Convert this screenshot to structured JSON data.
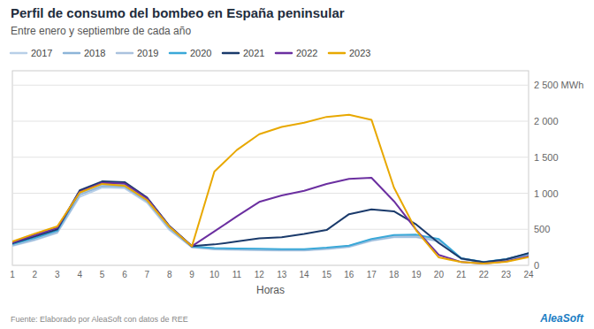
{
  "chart_data": {
    "type": "line",
    "title": "Perfil de consumo del bombeo en España peninsular",
    "subtitle": "Entre enero y septiembre de cada año",
    "x_label": "Horas",
    "x": [
      1,
      2,
      3,
      4,
      5,
      6,
      7,
      8,
      9,
      10,
      11,
      12,
      13,
      14,
      15,
      16,
      17,
      18,
      19,
      20,
      21,
      22,
      23,
      24
    ],
    "xlim": [
      1,
      24
    ],
    "xticks": [
      1,
      2,
      3,
      4,
      5,
      6,
      7,
      8,
      9,
      10,
      11,
      12,
      13,
      14,
      15,
      16,
      17,
      18,
      19,
      20,
      21,
      22,
      23,
      24
    ],
    "ylim": [
      0,
      2700
    ],
    "yticks": [
      0,
      500,
      {
        "value": 1000,
        "label": "1 000"
      },
      {
        "value": 1500,
        "label": "1 500"
      },
      {
        "value": 2000,
        "label": "2 000"
      },
      {
        "value": 2500,
        "label": "2 500 MWh"
      }
    ],
    "grid": true,
    "legend": "top",
    "series": [
      {
        "name": "2017",
        "color": "#b8cfe8",
        "values": [
          270,
          350,
          450,
          950,
          1080,
          1070,
          870,
          490,
          250,
          220,
          215,
          210,
          205,
          205,
          225,
          255,
          340,
          390,
          390,
          330,
          90,
          40,
          80,
          150
        ]
      },
      {
        "name": "2018",
        "color": "#8db5d8",
        "values": [
          280,
          360,
          460,
          980,
          1100,
          1090,
          890,
          510,
          255,
          228,
          222,
          218,
          212,
          212,
          232,
          262,
          350,
          400,
          400,
          340,
          92,
          42,
          82,
          155
        ]
      },
      {
        "name": "2019",
        "color": "#aac2de",
        "values": [
          285,
          365,
          465,
          1000,
          1120,
          1110,
          905,
          520,
          258,
          232,
          226,
          222,
          216,
          216,
          236,
          266,
          355,
          405,
          405,
          345,
          94,
          44,
          84,
          158
        ]
      },
      {
        "name": "2020",
        "color": "#3aa8d8",
        "values": [
          295,
          380,
          480,
          1020,
          1145,
          1135,
          925,
          535,
          262,
          240,
          234,
          230,
          224,
          224,
          244,
          274,
          365,
          420,
          425,
          365,
          98,
          46,
          86,
          162
        ]
      },
      {
        "name": "2021",
        "color": "#1a3a6b",
        "values": [
          305,
          400,
          500,
          1040,
          1165,
          1155,
          940,
          545,
          268,
          290,
          330,
          375,
          390,
          435,
          490,
          710,
          775,
          750,
          565,
          310,
          95,
          42,
          82,
          168
        ]
      },
      {
        "name": "2022",
        "color": "#6b2fa0",
        "values": [
          315,
          420,
          520,
          1020,
          1145,
          1135,
          930,
          540,
          265,
          470,
          680,
          880,
          970,
          1035,
          1130,
          1200,
          1215,
          890,
          490,
          145,
          45,
          25,
          55,
          125
        ]
      },
      {
        "name": "2023",
        "color": "#e8a800",
        "values": [
          330,
          440,
          540,
          1010,
          1130,
          1105,
          905,
          535,
          265,
          1300,
          1600,
          1820,
          1920,
          1980,
          2060,
          2090,
          2020,
          1080,
          480,
          110,
          45,
          25,
          50,
          115
        ]
      }
    ],
    "annotations": [
      "Fuente: Elaborado por AleaSoft con datos de REE",
      "AleaSoft"
    ]
  }
}
